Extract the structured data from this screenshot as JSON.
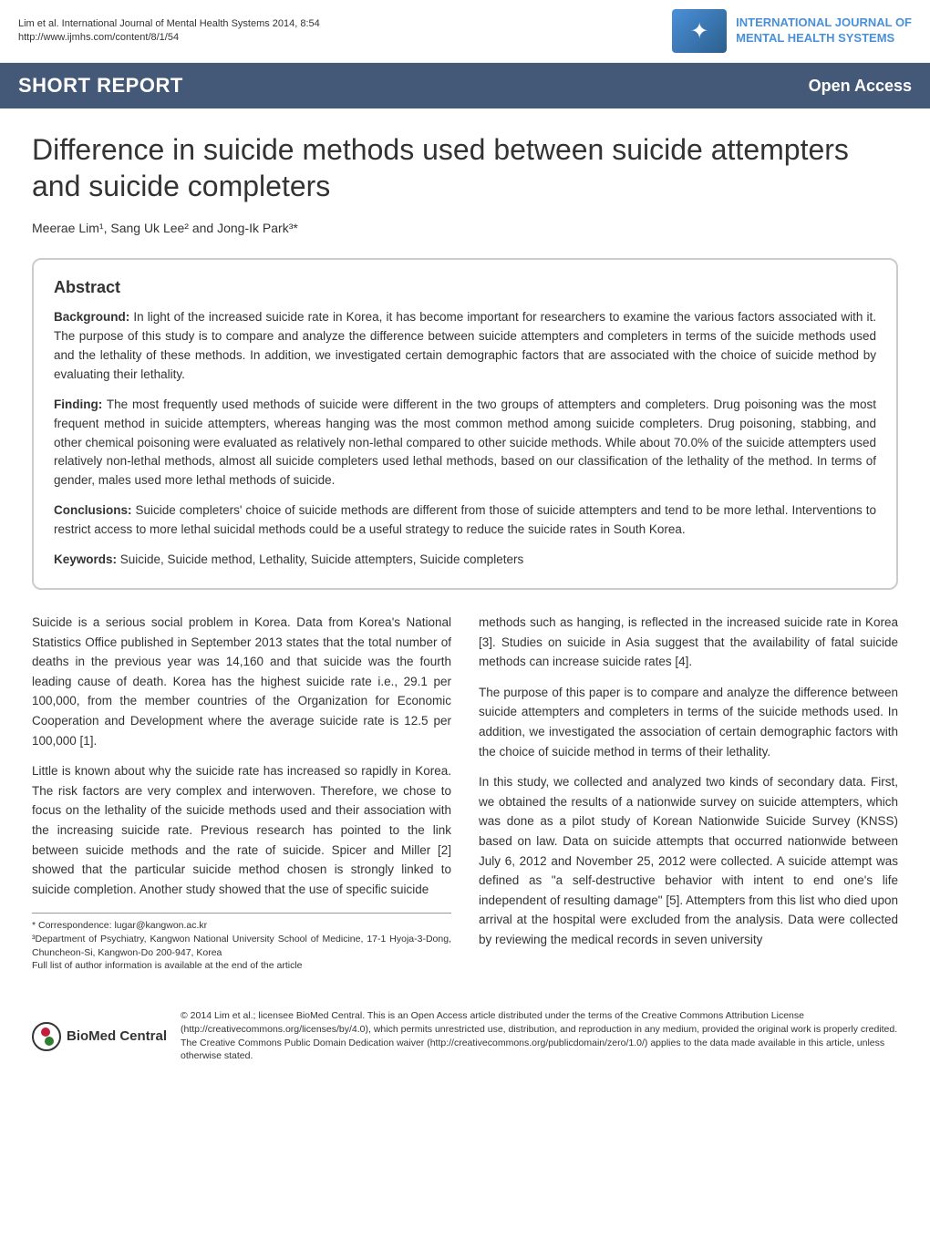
{
  "header": {
    "citation": "Lim et al. International Journal of Mental Health Systems 2014, 8:54",
    "url": "http://www.ijmhs.com/content/8/1/54",
    "journal_line1": "INTERNATIONAL JOURNAL OF",
    "journal_line2": "MENTAL HEALTH SYSTEMS"
  },
  "banner": {
    "section": "SHORT REPORT",
    "access": "Open Access",
    "bg_color": "#435977"
  },
  "article": {
    "title": "Difference in suicide methods used between suicide attempters and suicide completers",
    "authors": "Meerae Lim¹, Sang Uk Lee² and Jong-Ik Park³*"
  },
  "abstract": {
    "heading": "Abstract",
    "background_label": "Background:",
    "background_text": " In light of the increased suicide rate in Korea, it has become important for researchers to examine the various factors associated with it. The purpose of this study is to compare and analyze the difference between suicide attempters and completers in terms of the suicide methods used and the lethality of these methods. In addition, we investigated certain demographic factors that are associated with the choice of suicide method by evaluating their lethality.",
    "finding_label": "Finding:",
    "finding_text": " The most frequently used methods of suicide were different in the two groups of attempters and completers. Drug poisoning was the most frequent method in suicide attempters, whereas hanging was the most common method among suicide completers. Drug poisoning, stabbing, and other chemical poisoning were evaluated as relatively non-lethal compared to other suicide methods. While about 70.0% of the suicide attempters used relatively non-lethal methods, almost all suicide completers used lethal methods, based on our classification of the lethality of the method. In terms of gender, males used more lethal methods of suicide.",
    "conclusions_label": "Conclusions:",
    "conclusions_text": " Suicide completers' choice of suicide methods are different from those of suicide attempters and tend to be more lethal. Interventions to restrict access to more lethal suicidal methods could be a useful strategy to reduce the suicide rates in South Korea.",
    "keywords_label": "Keywords:",
    "keywords_text": " Suicide, Suicide method, Lethality, Suicide attempters, Suicide completers"
  },
  "body": {
    "left": {
      "p1": "Suicide is a serious social problem in Korea. Data from Korea's National Statistics Office published in September 2013 states that the total number of deaths in the previous year was 14,160 and that suicide was the fourth leading cause of death. Korea has the highest suicide rate i.e., 29.1 per 100,000, from the member countries of the Organization for Economic Cooperation and Development where the average suicide rate is 12.5 per 100,000 [1].",
      "p2": "Little is known about why the suicide rate has increased so rapidly in Korea. The risk factors are very complex and interwoven. Therefore, we chose to focus on the lethality of the suicide methods used and their association with the increasing suicide rate. Previous research has pointed to the link between suicide methods and the rate of suicide. Spicer and Miller [2] showed that the particular suicide method chosen is strongly linked to suicide completion. Another study showed that the use of specific suicide"
    },
    "right": {
      "p1": "methods such as hanging, is reflected in the increased suicide rate in Korea [3]. Studies on suicide in Asia suggest that the availability of fatal suicide methods can increase suicide rates [4].",
      "p2": "The purpose of this paper is to compare and analyze the difference between suicide attempters and completers in terms of the suicide methods used. In addition, we investigated the association of certain demographic factors with the choice of suicide method in terms of their lethality.",
      "p3": "In this study, we collected and analyzed two kinds of secondary data. First, we obtained the results of a nationwide survey on suicide attempters, which was done as a pilot study of Korean Nationwide Suicide Survey (KNSS) based on law. Data on suicide attempts that occurred nationwide between July 6, 2012 and November 25, 2012 were collected. A suicide attempt was defined as \"a self-destructive behavior with intent to end one's life independent of resulting damage\" [5]. Attempters from this list who died upon arrival at the hospital were excluded from the analysis. Data were collected by reviewing the medical records in seven university"
    }
  },
  "correspondence": {
    "line1": "* Correspondence: lugar@kangwon.ac.kr",
    "line2": "³Department of Psychiatry, Kangwon National University School of Medicine, 17-1 Hyoja-3-Dong, Chuncheon-Si, Kangwon-Do 200-947, Korea",
    "line3": "Full list of author information is available at the end of the article"
  },
  "footer": {
    "biomed": "BioMed Central",
    "license": "© 2014 Lim et al.; licensee BioMed Central. This is an Open Access article distributed under the terms of the Creative Commons Attribution License (http://creativecommons.org/licenses/by/4.0), which permits unrestricted use, distribution, and reproduction in any medium, provided the original work is properly credited. The Creative Commons Public Domain Dedication waiver (http://creativecommons.org/publicdomain/zero/1.0/) applies to the data made available in this article, unless otherwise stated."
  },
  "colors": {
    "banner_bg": "#435977",
    "link_blue": "#4a90d9",
    "border_gray": "#cccccc",
    "text": "#333333"
  },
  "typography": {
    "title_fontsize": 32,
    "body_fontsize": 13.5,
    "abstract_fontsize": 13.5,
    "header_fontsize": 11
  }
}
